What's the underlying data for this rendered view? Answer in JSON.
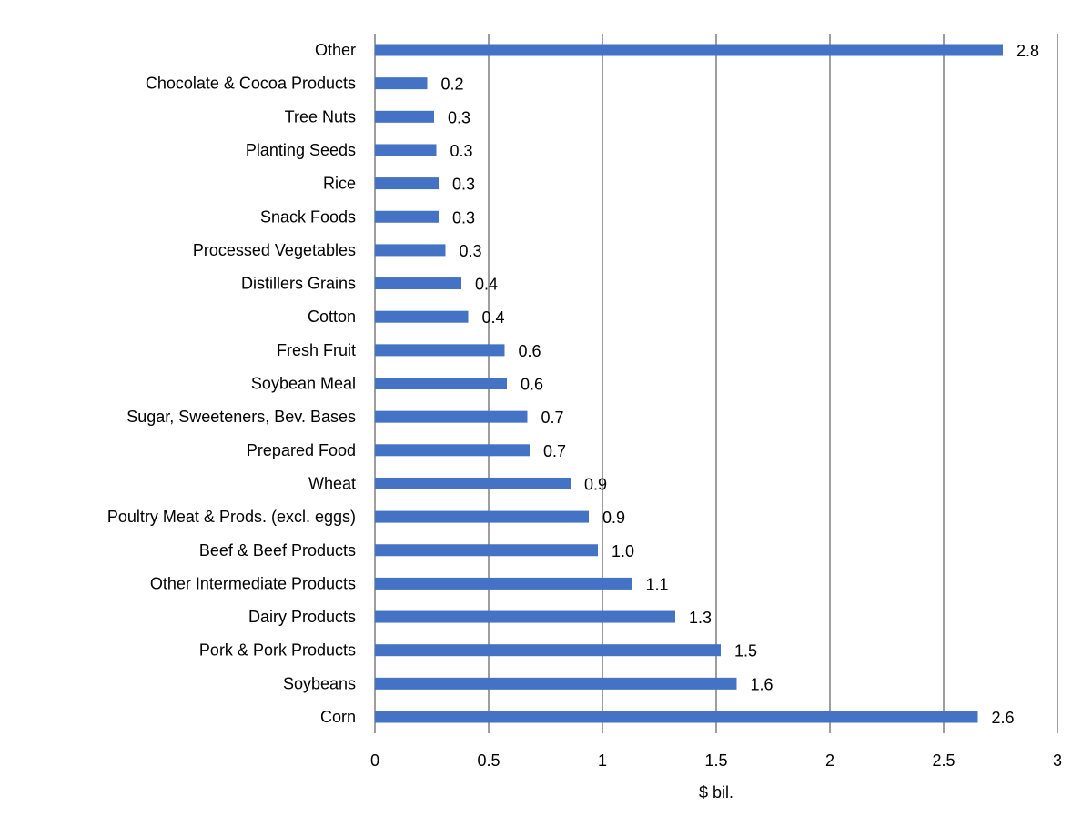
{
  "chart_data": {
    "type": "bar",
    "orientation": "horizontal",
    "categories": [
      "Other ",
      "Chocolate & Cocoa Products",
      "Tree Nuts",
      "Planting Seeds",
      "Rice",
      "Snack Foods ",
      "Processed Vegetables",
      "Distillers Grains",
      "Cotton",
      "Fresh Fruit",
      "Soybean Meal",
      "Sugar, Sweeteners, Bev. Bases",
      "Prepared Food",
      "Wheat",
      "Poultry Meat & Prods. (excl. eggs)",
      "Beef & Beef Products",
      "Other Intermediate Products",
      "Dairy Products",
      "Pork & Pork Products",
      "Soybeans",
      "Corn"
    ],
    "values": [
      2.76,
      0.23,
      0.26,
      0.27,
      0.28,
      0.28,
      0.31,
      0.38,
      0.41,
      0.57,
      0.58,
      0.67,
      0.68,
      0.86,
      0.94,
      0.98,
      1.13,
      1.32,
      1.52,
      1.59,
      2.65
    ],
    "data_labels": [
      "2.8",
      "0.2",
      "0.3",
      "0.3",
      "0.3",
      "0.3",
      "0.3",
      "0.4",
      "0.4",
      "0.6",
      "0.6",
      "0.7",
      "0.7",
      "0.9",
      "0.9",
      "1.0",
      "1.1",
      "1.3",
      "1.5",
      "1.6",
      "2.6"
    ],
    "xlabel": "$ bil.",
    "ylabel": "",
    "title": "",
    "xlim": [
      0,
      3
    ],
    "xticks": [
      0,
      0.5,
      1,
      1.5,
      2,
      2.5,
      3
    ],
    "xtick_labels": [
      "0",
      "0.5",
      "1",
      "1.5",
      "2",
      "2.5",
      "3"
    ],
    "grid": "vertical",
    "legend": "none",
    "bar_color": "#4472c4",
    "grid_color": "#7f7f7f",
    "frame_color": "#4472c4"
  }
}
